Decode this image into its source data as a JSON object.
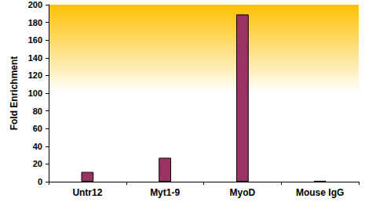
{
  "chart_data": {
    "type": "bar",
    "y_label": "Fold Enrichment",
    "categories": [
      "Untr12",
      "Myt1-9",
      "MyoD",
      "Mouse IgG"
    ],
    "values": [
      11,
      27,
      189,
      1
    ],
    "color": "#993366",
    "ylim": [
      0,
      200
    ],
    "yticks": [
      0,
      20,
      40,
      60,
      80,
      100,
      120,
      140,
      160,
      180,
      200
    ],
    "grid": false
  }
}
